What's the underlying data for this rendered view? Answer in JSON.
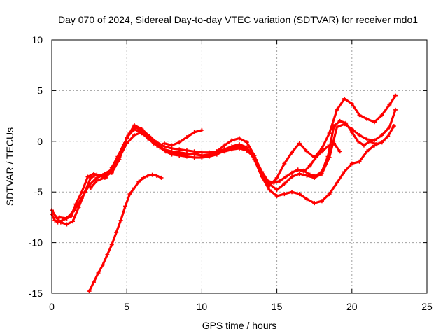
{
  "chart_data": {
    "type": "line",
    "title": "Day 070 of 2024, Sidereal Day-to-day VTEC variation (SDTVAR) for receiver mdo1",
    "xlabel": "GPS time / hours",
    "ylabel": "SDTVAR / TECUs",
    "xlim": [
      0,
      25
    ],
    "ylim": [
      -15,
      10
    ],
    "xticks": [
      0,
      5,
      10,
      15,
      20,
      25
    ],
    "yticks": [
      -15,
      -10,
      -5,
      0,
      5,
      10
    ],
    "xtick_labels": [
      "0",
      "5",
      "10",
      "15",
      "20",
      "25"
    ],
    "ytick_labels": [
      "-15",
      "-10",
      "-5",
      "0",
      "5",
      "10"
    ],
    "grid": true,
    "legend": "none",
    "series_color": "#ff0000",
    "series": [
      {
        "name": "track-1",
        "x": [
          0.0,
          0.2,
          0.4,
          0.7,
          1.0,
          1.3,
          1.6,
          2.0,
          2.4,
          2.8,
          3.2,
          3.6,
          4.0,
          4.4,
          4.8,
          5.2,
          5.6,
          6.0,
          6.4,
          6.8,
          7.2,
          7.6,
          8.0,
          8.5,
          9.0,
          9.5,
          10.0,
          10.5,
          11.0,
          11.5,
          12.0,
          12.4,
          12.8,
          13.2,
          13.6,
          14.0,
          14.4,
          14.8,
          15.2,
          15.6,
          16.0,
          16.4,
          16.8,
          17.2,
          17.6,
          18.0,
          18.4,
          18.8,
          19.2,
          19.6,
          20.0,
          20.4,
          20.8,
          21.2,
          21.6,
          22.0,
          22.4,
          22.8
        ],
        "y": [
          -7.2,
          -7.8,
          -8.0,
          -7.8,
          -7.6,
          -7.4,
          -6.2,
          -5.0,
          -3.5,
          -3.2,
          -3.4,
          -3.6,
          -2.6,
          -1.5,
          -0.3,
          0.8,
          1.4,
          1.0,
          0.3,
          -0.2,
          -0.6,
          -1.0,
          -1.3,
          -1.4,
          -1.5,
          -1.6,
          -1.6,
          -1.5,
          -1.3,
          -0.9,
          -0.6,
          -0.5,
          -0.6,
          -1.0,
          -1.8,
          -3.0,
          -3.9,
          -4.1,
          -3.9,
          -3.5,
          -3.1,
          -2.8,
          -2.9,
          -3.3,
          -3.4,
          -3.0,
          -1.5,
          1.5,
          2.0,
          1.8,
          0.9,
          0.0,
          -0.4,
          0.0,
          -0.3,
          -0.1,
          0.5,
          1.5
        ]
      },
      {
        "name": "track-2",
        "x": [
          0.0,
          0.3,
          0.6,
          1.0,
          1.4,
          1.8,
          2.2,
          2.6,
          3.0,
          3.5,
          4.0,
          4.5,
          5.0,
          5.5,
          6.0,
          6.5,
          7.0,
          7.5,
          8.0,
          8.5,
          9.0,
          9.5,
          10.0,
          10.5,
          11.0,
          11.5,
          12.0,
          12.5,
          13.0,
          13.5,
          14.0,
          14.5,
          15.0,
          15.5,
          16.0,
          16.5,
          17.0,
          17.5,
          18.0,
          18.5,
          19.0,
          19.5,
          20.0,
          20.5,
          21.0,
          21.5,
          22.0,
          22.5,
          22.9
        ],
        "y": [
          -6.8,
          -7.5,
          -8.0,
          -8.2,
          -7.9,
          -6.5,
          -5.0,
          -3.6,
          -3.3,
          -3.4,
          -3.1,
          -1.8,
          0.4,
          1.2,
          0.8,
          0.2,
          -0.4,
          -0.9,
          -1.2,
          -1.3,
          -1.3,
          -1.2,
          -1.4,
          -1.3,
          -1.0,
          -0.4,
          0.1,
          0.3,
          -0.1,
          -1.4,
          -3.4,
          -4.4,
          -3.6,
          -2.2,
          -1.1,
          -0.2,
          -1.0,
          -1.6,
          -0.7,
          0.8,
          3.1,
          4.2,
          3.7,
          2.6,
          2.2,
          1.9,
          2.6,
          3.6,
          4.5
        ]
      },
      {
        "name": "track-3",
        "x": [
          0.5,
          1.0,
          1.5,
          2.0,
          2.5,
          3.0,
          3.5,
          4.0,
          4.5,
          5.0,
          5.5,
          6.0,
          6.5,
          7.0,
          7.5,
          8.0,
          8.5,
          9.0,
          9.5,
          10.0,
          10.5,
          11.0,
          11.5,
          12.0,
          12.5,
          13.0,
          13.5,
          14.0,
          14.5,
          15.0,
          15.5,
          16.0,
          16.5,
          17.0,
          17.5,
          18.0,
          18.5,
          19.0,
          19.5,
          20.0,
          20.5,
          21.0,
          21.5,
          22.0,
          22.5,
          22.9
        ],
        "y": [
          -7.5,
          -7.6,
          -6.8,
          -5.6,
          -4.3,
          -3.6,
          -3.2,
          -2.8,
          -1.6,
          -0.2,
          0.6,
          0.9,
          0.3,
          -0.3,
          -0.8,
          -1.0,
          -1.1,
          -1.2,
          -1.3,
          -1.4,
          -1.4,
          -1.2,
          -1.0,
          -0.8,
          -0.7,
          -0.9,
          -1.6,
          -3.0,
          -4.2,
          -4.8,
          -4.2,
          -3.5,
          -3.2,
          -3.4,
          -3.6,
          -3.2,
          -1.6,
          1.4,
          1.7,
          1.2,
          0.6,
          0.2,
          0.1,
          0.6,
          1.4,
          3.1
        ]
      },
      {
        "name": "track-4",
        "x": [
          2.6,
          3.0,
          3.5,
          4.0,
          4.5,
          5.0,
          5.5,
          6.0,
          6.5,
          7.0,
          7.5,
          8.0,
          8.5,
          9.0,
          9.5,
          10.0,
          10.5,
          11.0,
          11.5,
          12.0,
          12.5,
          13.0,
          13.5,
          14.0,
          14.5,
          15.0,
          15.5,
          16.0,
          16.5,
          17.0,
          17.5,
          18.0,
          18.5,
          19.0,
          19.5,
          20.0,
          20.5,
          21.0,
          21.5,
          22.0
        ],
        "y": [
          -4.6,
          -3.9,
          -3.6,
          -3.0,
          -1.4,
          0.3,
          1.6,
          1.2,
          0.5,
          -0.1,
          -0.5,
          -0.7,
          -0.8,
          -0.9,
          -1.0,
          -1.1,
          -1.1,
          -1.0,
          -0.8,
          -0.5,
          -0.3,
          -0.6,
          -1.8,
          -3.5,
          -4.8,
          -5.4,
          -5.2,
          -5.0,
          -5.2,
          -5.7,
          -6.1,
          -5.9,
          -5.2,
          -4.1,
          -3.0,
          -2.2,
          -2.0,
          -1.0,
          -0.4,
          -0.1
        ]
      },
      {
        "name": "track-5",
        "x": [
          2.5,
          2.8,
          3.1,
          3.4,
          3.7,
          4.0,
          4.3,
          4.6,
          4.9,
          5.2,
          5.5,
          5.8,
          6.1,
          6.4,
          6.7,
          7.0,
          7.3
        ],
        "y": [
          -14.8,
          -13.9,
          -13.0,
          -12.2,
          -11.2,
          -10.2,
          -9.0,
          -7.8,
          -6.4,
          -5.2,
          -4.6,
          -4.0,
          -3.6,
          -3.4,
          -3.3,
          -3.4,
          -3.6
        ]
      },
      {
        "name": "track-6",
        "x": [
          7.5,
          8.0,
          8.5,
          9.0,
          9.5,
          10.0
        ],
        "y": [
          -0.2,
          -0.4,
          -0.1,
          0.4,
          0.9,
          1.1
        ]
      },
      {
        "name": "track-7",
        "x": [
          16.4,
          16.8,
          17.2,
          17.6,
          18.0,
          18.4,
          18.8,
          19.2
        ],
        "y": [
          -2.8,
          -3.0,
          -2.4,
          -1.6,
          -1.0,
          -0.5,
          -0.2,
          -1.0
        ]
      }
    ]
  }
}
